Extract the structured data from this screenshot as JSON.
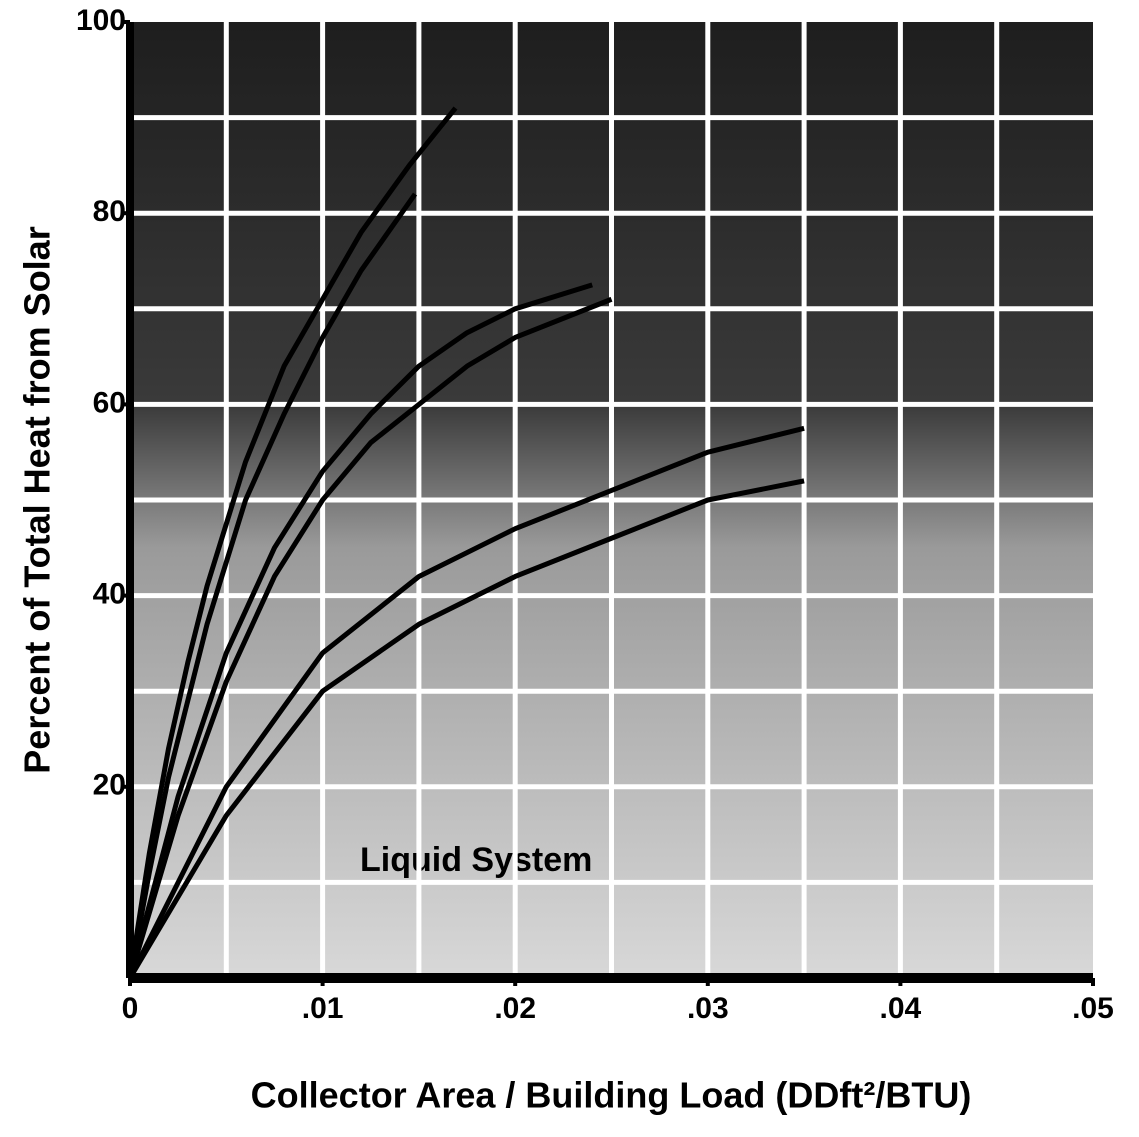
{
  "chart_data": {
    "type": "line",
    "y_label": "Percent of Total Heat from Solar",
    "x_label": "Collector Area / Building Load (DDft²/BTU)",
    "annotation": "Liquid System",
    "xlim": [
      0,
      0.05
    ],
    "ylim": [
      0,
      100
    ],
    "xticks": [
      0,
      {
        "value": 0.01,
        "label": ".01"
      },
      {
        "value": 0.02,
        "label": ".02"
      },
      {
        "value": 0.03,
        "label": ".03"
      },
      {
        "value": 0.04,
        "label": ".04"
      },
      {
        "value": 0.05,
        "label": ".05"
      }
    ],
    "yticks": [
      20,
      40,
      60,
      80,
      100
    ],
    "xgrid": [
      0.005,
      0.01,
      0.015,
      0.02,
      0.025,
      0.03,
      0.035,
      0.04,
      0.045
    ],
    "ygrid": [
      10,
      20,
      30,
      40,
      50,
      60,
      70,
      80,
      90
    ],
    "grid": true,
    "series": [
      {
        "color": "#000000",
        "x": [
          0,
          0.001,
          0.002,
          0.003,
          0.004,
          0.006,
          0.008,
          0.01,
          0.012,
          0.0145,
          0.0169
        ],
        "values": [
          0,
          13,
          24,
          33,
          41,
          54,
          64,
          71,
          78,
          85,
          91
        ]
      },
      {
        "color": "#000000",
        "x": [
          0,
          0.001,
          0.002,
          0.003,
          0.004,
          0.006,
          0.008,
          0.01,
          0.012,
          0.0148
        ],
        "values": [
          0,
          11,
          21,
          29,
          37,
          50,
          59,
          67,
          74,
          82
        ]
      },
      {
        "color": "#000000",
        "x": [
          0,
          0.0025,
          0.005,
          0.0075,
          0.01,
          0.0125,
          0.015,
          0.0175,
          0.02,
          0.024
        ],
        "values": [
          0,
          19,
          34,
          45,
          53,
          59,
          64,
          67.5,
          70,
          72.5
        ]
      },
      {
        "color": "#000000",
        "x": [
          0,
          0.0025,
          0.005,
          0.0075,
          0.01,
          0.0125,
          0.015,
          0.0175,
          0.02,
          0.025
        ],
        "values": [
          0,
          17,
          31,
          42,
          50,
          56,
          60,
          64,
          67,
          71
        ]
      },
      {
        "color": "#000000",
        "x": [
          0,
          0.005,
          0.01,
          0.015,
          0.02,
          0.025,
          0.03,
          0.035
        ],
        "values": [
          0,
          20,
          34,
          42,
          47,
          51,
          55,
          57.5
        ]
      },
      {
        "color": "#000000",
        "x": [
          0,
          0.005,
          0.01,
          0.015,
          0.02,
          0.025,
          0.03,
          0.035
        ],
        "values": [
          0,
          17,
          30,
          37,
          42,
          46,
          50,
          52
        ]
      }
    ]
  }
}
